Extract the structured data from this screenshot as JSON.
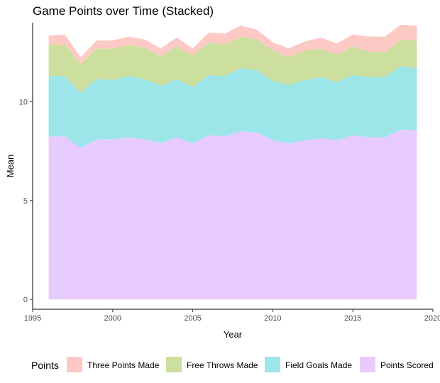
{
  "chart_data": {
    "type": "area",
    "stacked": true,
    "title": "Game Points over Time (Stacked)",
    "xlabel": "Year",
    "ylabel": "Mean",
    "xlim": [
      1995,
      2020
    ],
    "ylim": [
      0,
      14
    ],
    "x_ticks": [
      1995,
      2000,
      2005,
      2010,
      2015,
      2020
    ],
    "y_ticks": [
      0,
      5,
      10
    ],
    "grid": false,
    "legend": {
      "title": "Points",
      "position": "bottom"
    },
    "x": [
      1996,
      1997,
      1998,
      1999,
      2000,
      2001,
      2002,
      2003,
      2004,
      2005,
      2006,
      2007,
      2008,
      2009,
      2010,
      2011,
      2012,
      2013,
      2014,
      2015,
      2016,
      2017,
      2018,
      2019
    ],
    "series": [
      {
        "name": "Points Scored",
        "color": "#E7CBFF",
        "values": [
          8.25,
          8.25,
          7.65,
          8.1,
          8.1,
          8.2,
          8.1,
          7.9,
          8.2,
          7.9,
          8.3,
          8.25,
          8.5,
          8.45,
          8.05,
          7.9,
          8.05,
          8.15,
          8.05,
          8.3,
          8.2,
          8.2,
          8.6,
          8.55
        ]
      },
      {
        "name": "Field Goals Made",
        "color": "#9CE5E8",
        "values": [
          3.05,
          3.05,
          2.8,
          3.05,
          3.0,
          3.1,
          3.05,
          2.9,
          2.95,
          2.85,
          3.05,
          3.05,
          3.2,
          3.15,
          3.0,
          2.95,
          3.05,
          3.1,
          2.95,
          3.05,
          3.05,
          3.05,
          3.2,
          3.15
        ]
      },
      {
        "name": "Free Throws Made",
        "color": "#CDDF9F",
        "values": [
          1.6,
          1.6,
          1.45,
          1.55,
          1.6,
          1.55,
          1.6,
          1.5,
          1.65,
          1.6,
          1.65,
          1.6,
          1.6,
          1.55,
          1.55,
          1.4,
          1.5,
          1.45,
          1.4,
          1.45,
          1.3,
          1.25,
          1.35,
          1.4
        ]
      },
      {
        "name": "Three Points Made",
        "color": "#FDC9C5",
        "values": [
          0.45,
          0.5,
          0.35,
          0.4,
          0.4,
          0.45,
          0.4,
          0.4,
          0.45,
          0.35,
          0.5,
          0.55,
          0.55,
          0.5,
          0.4,
          0.45,
          0.45,
          0.55,
          0.55,
          0.6,
          0.75,
          0.8,
          0.75,
          0.75
        ]
      }
    ]
  }
}
